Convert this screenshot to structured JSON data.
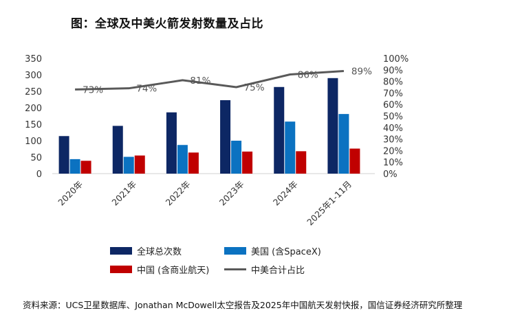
{
  "title": "图：全球及中美火箭发射数量及占比",
  "source": "资料来源：UCS卫星数据库、Jonathan McDowell太空报告及2025年中国航天发射快报，国信证券经济研究所整理",
  "colors": {
    "global": "#0d2764",
    "us": "#0b72c1",
    "china": "#c00000",
    "ratio": "#595959"
  },
  "chart_data": {
    "type": "bar",
    "categories": [
      "2020年",
      "2021年",
      "2022年",
      "2023年",
      "2024年",
      "2025年1-11月"
    ],
    "series": [
      {
        "name": "全球总次数",
        "values": [
          114,
          145,
          186,
          223,
          263,
          290
        ]
      },
      {
        "name": "美国 (含SpaceX)",
        "values": [
          44,
          51,
          87,
          100,
          158,
          181
        ]
      },
      {
        "name": "中国 (含商业航天)",
        "values": [
          39,
          55,
          64,
          67,
          68,
          76
        ]
      }
    ],
    "line_series": {
      "name": "中美合计占比",
      "values": [
        0.73,
        0.74,
        0.81,
        0.75,
        0.86,
        0.89
      ],
      "labels": [
        "73%",
        "74%",
        "81%",
        "75%",
        "86%",
        "89%"
      ]
    },
    "y_left": {
      "min": 0,
      "max": 350,
      "ticks": [
        "0",
        "50",
        "100",
        "150",
        "200",
        "250",
        "300",
        "350"
      ]
    },
    "y_right": {
      "min": 0,
      "max": 1,
      "ticks": [
        "0%",
        "10%",
        "20%",
        "30%",
        "40%",
        "50%",
        "60%",
        "70%",
        "80%",
        "90%",
        "100%"
      ]
    }
  }
}
